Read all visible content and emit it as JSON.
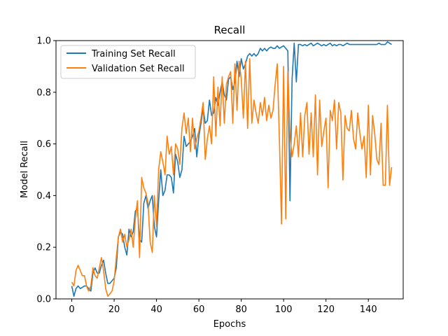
{
  "chart_data": {
    "type": "line",
    "title": "Recall",
    "xlabel": "Epochs",
    "ylabel": "Model Recall",
    "xlim": [
      -7.45,
      156.45
    ],
    "ylim": [
      0.0,
      1.0
    ],
    "xticks": [
      0,
      20,
      40,
      60,
      80,
      100,
      120,
      140
    ],
    "yticks": [
      0.0,
      0.2,
      0.4,
      0.6,
      0.8,
      1.0
    ],
    "grid": false,
    "legend_position": "top-left",
    "series": [
      {
        "name": "Training Set Recall",
        "color": "#1f77b4",
        "values": [
          0.05,
          0.01,
          0.04,
          0.05,
          0.04,
          0.045,
          0.05,
          0.05,
          0.04,
          0.03,
          0.1,
          0.12,
          0.1,
          0.1,
          0.13,
          0.15,
          0.1,
          0.06,
          0.06,
          0.07,
          0.08,
          0.12,
          0.24,
          0.26,
          0.25,
          0.2,
          0.17,
          0.27,
          0.24,
          0.26,
          0.34,
          0.35,
          0.23,
          0.22,
          0.37,
          0.4,
          0.35,
          0.38,
          0.4,
          0.28,
          0.24,
          0.38,
          0.5,
          0.4,
          0.42,
          0.48,
          0.48,
          0.47,
          0.41,
          0.56,
          0.53,
          0.47,
          0.5,
          0.63,
          0.59,
          0.6,
          0.61,
          0.63,
          0.66,
          0.55,
          0.63,
          0.68,
          0.74,
          0.68,
          0.69,
          0.77,
          0.71,
          0.72,
          0.78,
          0.75,
          0.8,
          0.84,
          0.79,
          0.77,
          0.85,
          0.86,
          0.81,
          0.84,
          0.92,
          0.86,
          0.93,
          0.89,
          0.91,
          0.94,
          0.95,
          0.94,
          0.95,
          0.94,
          0.95,
          0.97,
          0.96,
          0.97,
          0.96,
          0.97,
          0.975,
          0.97,
          0.97,
          0.98,
          0.97,
          0.975,
          0.98,
          0.97,
          0.96,
          0.38,
          0.85,
          0.99,
          0.84,
          0.985,
          0.985,
          0.98,
          0.985,
          0.98,
          0.985,
          0.99,
          0.98,
          0.985,
          0.99,
          0.985,
          0.98,
          0.985,
          0.98,
          0.985,
          0.99,
          0.98,
          0.985,
          0.98,
          0.985,
          0.985,
          0.98,
          0.985,
          0.99,
          0.985,
          0.985,
          0.985,
          0.985,
          0.985,
          0.985,
          0.985,
          0.985,
          0.985,
          0.985,
          0.985,
          0.985,
          0.985,
          0.985,
          0.99,
          0.985,
          0.985,
          0.985,
          0.995,
          0.99,
          0.985
        ]
      },
      {
        "name": "Validation Set Recall",
        "color": "#ff7f0e",
        "values": [
          0.065,
          0.05,
          0.11,
          0.13,
          0.11,
          0.09,
          0.09,
          0.05,
          0.03,
          0.05,
          0.12,
          0.09,
          0.08,
          0.12,
          0.16,
          0.11,
          0.04,
          0.01,
          0.02,
          0.03,
          0.07,
          0.16,
          0.24,
          0.27,
          0.22,
          0.25,
          0.2,
          0.23,
          0.27,
          0.2,
          0.31,
          0.38,
          0.16,
          0.47,
          0.43,
          0.41,
          0.37,
          0.22,
          0.18,
          0.4,
          0.28,
          0.5,
          0.57,
          0.53,
          0.48,
          0.63,
          0.56,
          0.59,
          0.48,
          0.6,
          0.58,
          0.52,
          0.66,
          0.72,
          0.64,
          0.7,
          0.57,
          0.7,
          0.58,
          0.62,
          0.65,
          0.7,
          0.76,
          0.54,
          0.62,
          0.67,
          0.6,
          0.86,
          0.63,
          0.82,
          0.67,
          0.86,
          0.68,
          0.83,
          0.86,
          0.88,
          0.68,
          0.91,
          0.73,
          0.92,
          0.85,
          0.7,
          0.92,
          0.66,
          0.93,
          0.68,
          0.77,
          0.72,
          0.68,
          0.76,
          0.71,
          0.78,
          0.69,
          0.75,
          0.7,
          0.73,
          0.83,
          0.91,
          0.62,
          0.29,
          0.9,
          0.31,
          0.88,
          0.63,
          0.55,
          0.6,
          0.67,
          0.55,
          0.72,
          0.55,
          0.71,
          0.76,
          0.56,
          0.72,
          0.55,
          0.79,
          0.48,
          0.77,
          0.59,
          0.65,
          0.7,
          0.43,
          0.73,
          0.69,
          0.77,
          0.58,
          0.76,
          0.72,
          0.46,
          0.71,
          0.66,
          0.65,
          0.73,
          0.62,
          0.58,
          0.72,
          0.64,
          0.58,
          0.63,
          0.47,
          0.75,
          0.48,
          0.71,
          0.64,
          0.54,
          0.52,
          0.68,
          0.44,
          0.44,
          0.75,
          0.44,
          0.51
        ]
      }
    ]
  }
}
